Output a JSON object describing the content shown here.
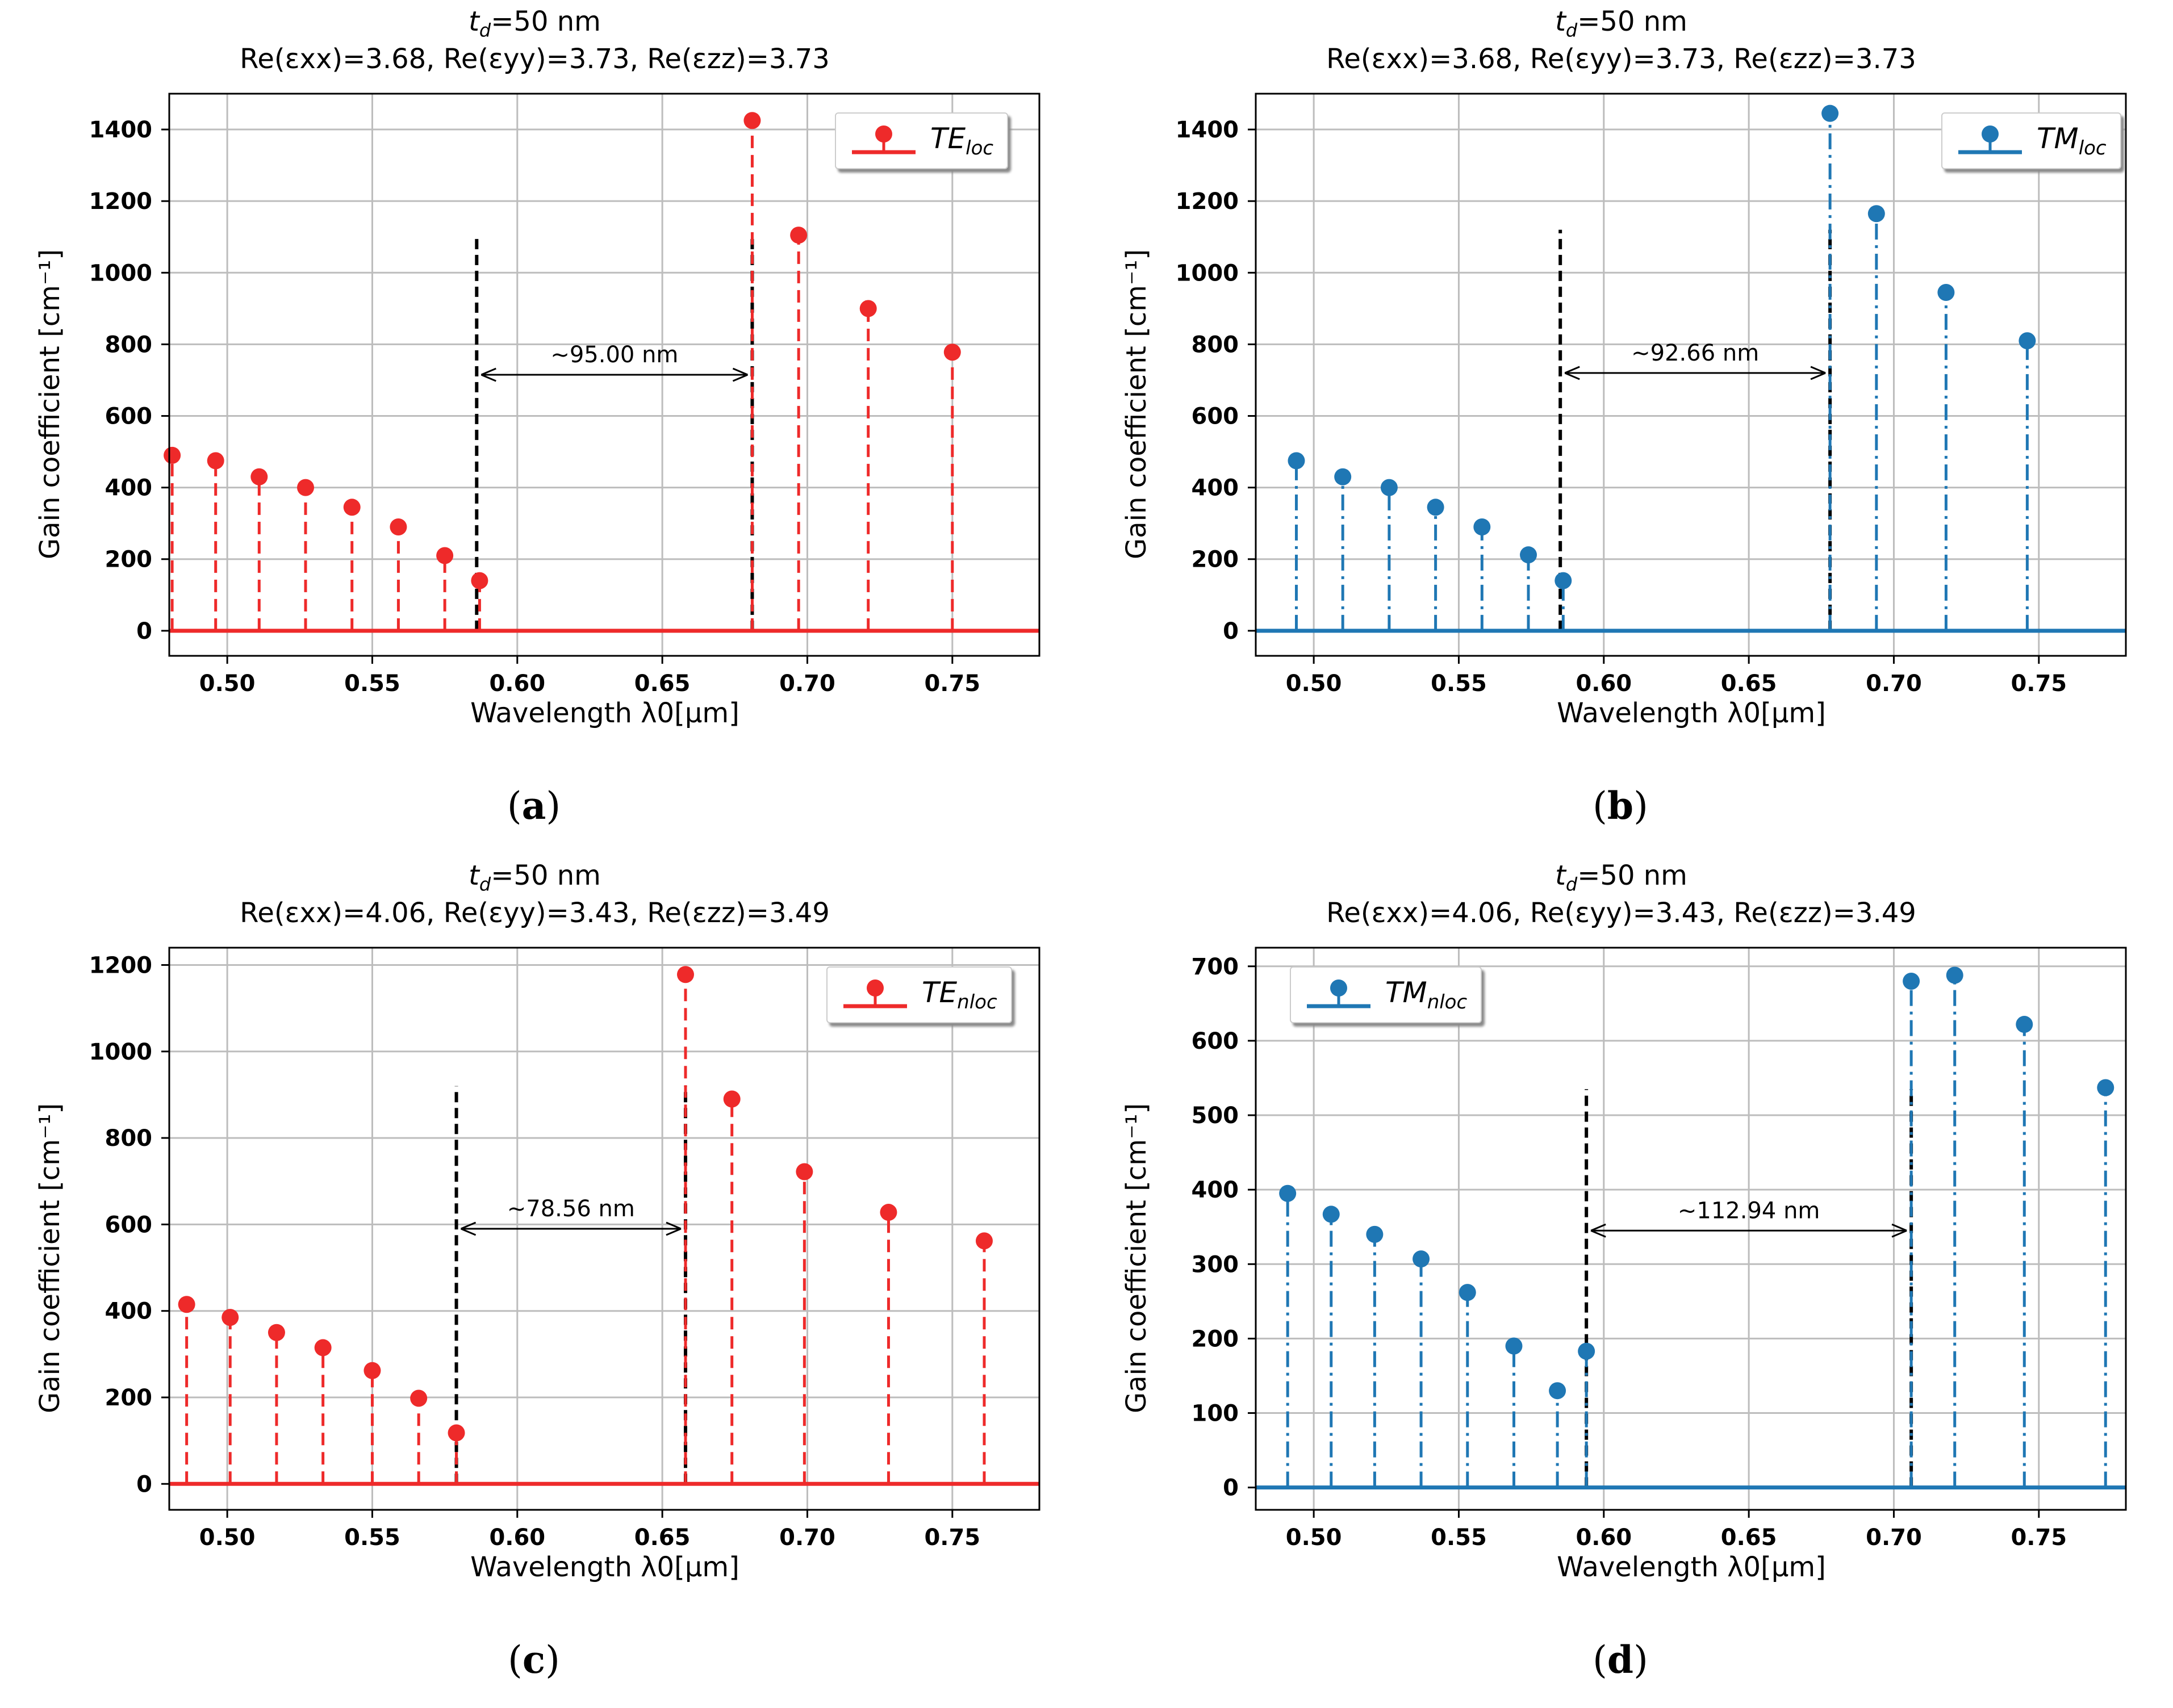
{
  "panels": [
    {
      "id": "a",
      "title_line1_prefix": "t",
      "title_line1_sub": "d",
      "title_line1_suffix": "=50 nm",
      "title_line2": "Re(εxx)=3.68, Re(εyy)=3.73, Re(εzz)=3.73",
      "xlabel": "Wavelength λ0[μm]",
      "ylabel": "Gain coefficient [cm⁻¹]",
      "legend_main": "TE",
      "legend_sub": "loc",
      "caption": "a",
      "color": "#ee2a2a",
      "linestyle": "dashed",
      "annotation": "~95.00 nm",
      "marker_lines": [
        0.586,
        0.681
      ],
      "marker_line_top": 1110,
      "arrow_y": 715,
      "chart_data": {
        "type": "stem",
        "x": [
          0.481,
          0.496,
          0.511,
          0.527,
          0.543,
          0.559,
          0.575,
          0.587,
          0.681,
          0.697,
          0.721,
          0.75
        ],
        "y": [
          490,
          475,
          430,
          400,
          345,
          290,
          210,
          140,
          1425,
          1105,
          900,
          778
        ],
        "xlim": [
          0.48,
          0.78
        ],
        "ylim": [
          -70,
          1500
        ],
        "xticks": [
          0.5,
          0.55,
          0.6,
          0.65,
          0.7,
          0.75
        ],
        "xtick_labels": [
          "0.50",
          "0.55",
          "0.60",
          "0.65",
          "0.70",
          "0.75"
        ],
        "yticks": [
          0,
          200,
          400,
          600,
          800,
          1000,
          1200,
          1400
        ],
        "ytick_labels": [
          "0",
          "200",
          "400",
          "600",
          "800",
          "1000",
          "1200",
          "1400"
        ],
        "grid": true,
        "legend_position": "top-right"
      }
    },
    {
      "id": "b",
      "title_line1_prefix": "t",
      "title_line1_sub": "d",
      "title_line1_suffix": "=50 nm",
      "title_line2": "Re(εxx)=3.68, Re(εyy)=3.73, Re(εzz)=3.73",
      "xlabel": "Wavelength λ0[μm]",
      "ylabel": "Gain coefficient [cm⁻¹]",
      "legend_main": "TM",
      "legend_sub": "loc",
      "caption": "b",
      "color": "#1f77b4",
      "linestyle": "dashdot",
      "annotation": "~92.66 nm",
      "marker_lines": [
        0.585,
        0.678
      ],
      "marker_line_top": 1120,
      "arrow_y": 720,
      "chart_data": {
        "type": "stem",
        "x": [
          0.494,
          0.51,
          0.526,
          0.542,
          0.558,
          0.574,
          0.586,
          0.678,
          0.694,
          0.718,
          0.746
        ],
        "y": [
          475,
          430,
          400,
          345,
          290,
          212,
          140,
          1445,
          1165,
          945,
          810
        ],
        "xlim": [
          0.48,
          0.78
        ],
        "ylim": [
          -70,
          1500
        ],
        "xticks": [
          0.5,
          0.55,
          0.6,
          0.65,
          0.7,
          0.75
        ],
        "xtick_labels": [
          "0.50",
          "0.55",
          "0.60",
          "0.65",
          "0.70",
          "0.75"
        ],
        "yticks": [
          0,
          200,
          400,
          600,
          800,
          1000,
          1200,
          1400
        ],
        "ytick_labels": [
          "0",
          "200",
          "400",
          "600",
          "800",
          "1000",
          "1200",
          "1400"
        ],
        "grid": true,
        "legend_position": "top-right"
      }
    },
    {
      "id": "c",
      "title_line1_prefix": "t",
      "title_line1_sub": "d",
      "title_line1_suffix": "=50 nm",
      "title_line2": "Re(εxx)=4.06, Re(εyy)=3.43, Re(εzz)=3.49",
      "xlabel": "Wavelength λ0[μm]",
      "ylabel": "Gain coefficient [cm⁻¹]",
      "legend_main": "TE",
      "legend_sub": "nloc",
      "caption": "c",
      "color": "#ee2a2a",
      "linestyle": "dashed",
      "annotation": "~78.56 nm",
      "marker_lines": [
        0.579,
        0.658
      ],
      "marker_line_top": 920,
      "arrow_y": 590,
      "chart_data": {
        "type": "stem",
        "x": [
          0.486,
          0.501,
          0.517,
          0.533,
          0.55,
          0.566,
          0.579,
          0.658,
          0.674,
          0.699,
          0.728,
          0.761
        ],
        "y": [
          415,
          385,
          350,
          315,
          262,
          198,
          118,
          1178,
          890,
          722,
          628,
          562
        ],
        "xlim": [
          0.48,
          0.78
        ],
        "ylim": [
          -60,
          1240
        ],
        "xticks": [
          0.5,
          0.55,
          0.6,
          0.65,
          0.7,
          0.75
        ],
        "xtick_labels": [
          "0.50",
          "0.55",
          "0.60",
          "0.65",
          "0.70",
          "0.75"
        ],
        "yticks": [
          0,
          200,
          400,
          600,
          800,
          1000,
          1200
        ],
        "ytick_labels": [
          "0",
          "200",
          "400",
          "600",
          "800",
          "1000",
          "1200"
        ],
        "grid": true,
        "legend_position": "top-right"
      }
    },
    {
      "id": "d",
      "title_line1_prefix": "t",
      "title_line1_sub": "d",
      "title_line1_suffix": "=50 nm",
      "title_line2": "Re(εxx)=4.06, Re(εyy)=3.43, Re(εzz)=3.49",
      "xlabel": "Wavelength λ0[μm]",
      "ylabel": "Gain coefficient [cm⁻¹]",
      "legend_main": "TM",
      "legend_sub": "nloc",
      "caption": "d",
      "color": "#1f77b4",
      "linestyle": "dashdot",
      "annotation": "~112.94 nm",
      "marker_lines": [
        0.594,
        0.706
      ],
      "marker_line_top": 535,
      "arrow_y": 345,
      "chart_data": {
        "type": "stem",
        "x": [
          0.491,
          0.506,
          0.521,
          0.537,
          0.553,
          0.569,
          0.584,
          0.594,
          0.706,
          0.721,
          0.745,
          0.773
        ],
        "y": [
          395,
          367,
          340,
          307,
          262,
          190,
          130,
          183,
          680,
          688,
          622,
          537
        ],
        "xlim": [
          0.48,
          0.78
        ],
        "ylim": [
          -30,
          725
        ],
        "xticks": [
          0.5,
          0.55,
          0.6,
          0.65,
          0.7,
          0.75
        ],
        "xtick_labels": [
          "0.50",
          "0.55",
          "0.60",
          "0.65",
          "0.70",
          "0.75"
        ],
        "yticks": [
          0,
          100,
          200,
          300,
          400,
          500,
          600,
          700
        ],
        "ytick_labels": [
          "0",
          "100",
          "200",
          "300",
          "400",
          "500",
          "600",
          "700"
        ],
        "grid": true,
        "legend_position": "top-left"
      }
    }
  ]
}
